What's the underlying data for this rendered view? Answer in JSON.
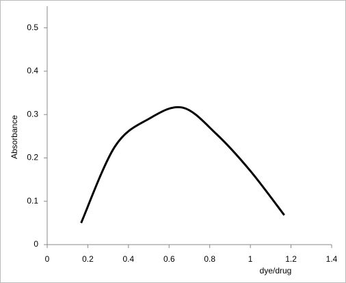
{
  "chart_data": {
    "type": "line",
    "x_label": "dye/drug",
    "y_label": "Absorbance",
    "x": [
      0.167,
      0.333,
      0.5,
      0.667,
      0.833,
      1.0,
      1.167
    ],
    "series": [
      {
        "color": "#000000",
        "values": [
          0.05,
          0.226,
          0.29,
          0.316,
          0.255,
          0.17,
          0.068
        ]
      }
    ],
    "xlim": [
      0,
      1.4
    ],
    "xticks": [
      0,
      0.2,
      0.4,
      0.6,
      0.8,
      1,
      1.2,
      1.4
    ],
    "ylim": [
      0,
      0.55
    ],
    "yticks": [
      0,
      0.1,
      0.2,
      0.3,
      0.4,
      0.5
    ],
    "smooth": true,
    "grid": false
  }
}
